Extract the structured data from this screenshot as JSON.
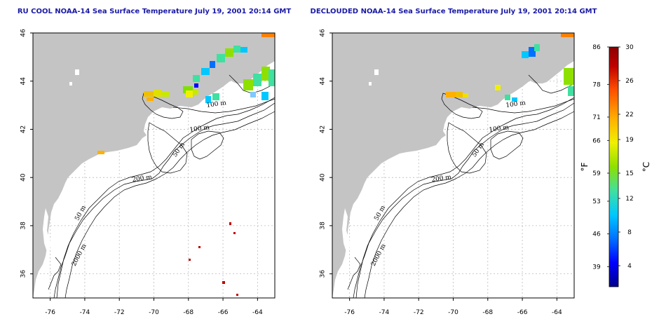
{
  "panels": [
    {
      "title": "RU COOL NOAA-14 Sea Surface Temperature July 19, 2001 20:14 GMT",
      "contour_labels": [
        "100 m",
        "100 m",
        "50 m",
        "200 m",
        "50 m",
        "2000 m"
      ]
    },
    {
      "title": "DECLOUDED NOAA-14 Sea Surface Temperature July 19, 2001 20:14 GMT",
      "contour_labels": [
        "100 m",
        "100 m",
        "50 m",
        "200 m",
        "50 m",
        "2000 m"
      ]
    }
  ],
  "axes": {
    "x_ticks": [
      "-76",
      "-74",
      "-72",
      "-70",
      "-68",
      "-66",
      "-64"
    ],
    "y_ticks": [
      "46",
      "44",
      "42",
      "40",
      "38",
      "36"
    ]
  },
  "colorbar": {
    "fahrenheit_label": "°F",
    "celsius_label": "°C",
    "fahrenheit_ticks": [
      "86",
      "78",
      "71",
      "66",
      "59",
      "53",
      "46",
      "39"
    ],
    "celsius_ticks": [
      "30",
      "26",
      "22",
      "19",
      "15",
      "12",
      "8",
      "4"
    ],
    "colors": [
      "#00008b",
      "#0000ff",
      "#0070ff",
      "#00c8ff",
      "#40e0a0",
      "#8ee000",
      "#f0f000",
      "#ffb000",
      "#ff5000",
      "#c00000",
      "#8b0000"
    ]
  },
  "colors": {
    "land": "#c4c4c4",
    "title": "#1a1aa6",
    "grid": "#bbbbbb"
  }
}
